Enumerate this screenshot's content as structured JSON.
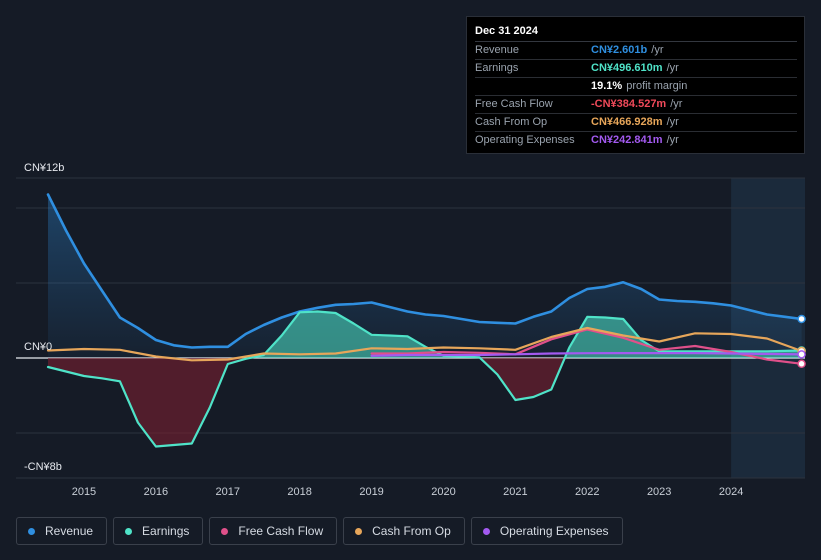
{
  "tooltip": {
    "date": "Dec 31 2024",
    "rows": [
      {
        "label": "Revenue",
        "value": "CN¥2.601b",
        "unit": "/yr",
        "color": "#2f8fe0"
      },
      {
        "label": "Earnings",
        "value": "CN¥496.610m",
        "unit": "/yr",
        "color": "#4fe3c8"
      },
      {
        "label": "",
        "value": "19.1%",
        "unit": "profit margin",
        "color": "#ffffff"
      },
      {
        "label": "Free Cash Flow",
        "value": "-CN¥384.527m",
        "unit": "/yr",
        "color": "#f04a5a"
      },
      {
        "label": "Cash From Op",
        "value": "CN¥466.928m",
        "unit": "/yr",
        "color": "#e7a65a"
      },
      {
        "label": "Operating Expenses",
        "value": "CN¥242.841m",
        "unit": "/yr",
        "color": "#a35af0"
      }
    ]
  },
  "chart_data": {
    "type": "line",
    "title": "",
    "xlabel": "",
    "ylabel": "",
    "y_axis_labels": {
      "top": "CN¥12b",
      "zero": "CN¥0",
      "bottom": "-CN¥8b"
    },
    "ylim": [
      -8,
      12
    ],
    "xlim": [
      2014.5,
      2025.0
    ],
    "x_ticks": [
      "2015",
      "2016",
      "2017",
      "2018",
      "2019",
      "2020",
      "2021",
      "2022",
      "2023",
      "2024"
    ],
    "forecast_start": 2024.0,
    "series": [
      {
        "name": "Revenue",
        "color": "#2f8fe0",
        "fill": true,
        "points": [
          [
            2014.5,
            10.9
          ],
          [
            2014.75,
            8.5
          ],
          [
            2015.0,
            6.3
          ],
          [
            2015.25,
            4.5
          ],
          [
            2015.5,
            2.7
          ],
          [
            2015.75,
            2.0
          ],
          [
            2016.0,
            1.2
          ],
          [
            2016.25,
            0.85
          ],
          [
            2016.5,
            0.7
          ],
          [
            2016.75,
            0.75
          ],
          [
            2017.0,
            0.75
          ],
          [
            2017.25,
            1.6
          ],
          [
            2017.5,
            2.2
          ],
          [
            2017.75,
            2.7
          ],
          [
            2018.0,
            3.1
          ],
          [
            2018.25,
            3.35
          ],
          [
            2018.5,
            3.55
          ],
          [
            2018.75,
            3.6
          ],
          [
            2019.0,
            3.7
          ],
          [
            2019.25,
            3.4
          ],
          [
            2019.5,
            3.1
          ],
          [
            2019.75,
            2.9
          ],
          [
            2020.0,
            2.8
          ],
          [
            2020.25,
            2.6
          ],
          [
            2020.5,
            2.4
          ],
          [
            2020.75,
            2.35
          ],
          [
            2021.0,
            2.3
          ],
          [
            2021.25,
            2.75
          ],
          [
            2021.5,
            3.1
          ],
          [
            2021.75,
            4.0
          ],
          [
            2022.0,
            4.6
          ],
          [
            2022.25,
            4.75
          ],
          [
            2022.5,
            5.05
          ],
          [
            2022.75,
            4.6
          ],
          [
            2023.0,
            3.9
          ],
          [
            2023.25,
            3.8
          ],
          [
            2023.5,
            3.75
          ],
          [
            2023.75,
            3.65
          ],
          [
            2024.0,
            3.5
          ],
          [
            2024.25,
            3.2
          ],
          [
            2024.5,
            2.9
          ],
          [
            2024.75,
            2.75
          ],
          [
            2024.98,
            2.601
          ]
        ]
      },
      {
        "name": "Earnings",
        "color": "#4fe3c8",
        "fill": true,
        "points": [
          [
            2014.5,
            -0.6
          ],
          [
            2014.75,
            -0.9
          ],
          [
            2015.0,
            -1.2
          ],
          [
            2015.25,
            -1.35
          ],
          [
            2015.5,
            -1.55
          ],
          [
            2015.75,
            -4.3
          ],
          [
            2016.0,
            -5.9
          ],
          [
            2016.25,
            -5.8
          ],
          [
            2016.5,
            -5.7
          ],
          [
            2016.75,
            -3.3
          ],
          [
            2017.0,
            -0.4
          ],
          [
            2017.25,
            -0.05
          ],
          [
            2017.5,
            0.2
          ],
          [
            2017.75,
            1.5
          ],
          [
            2018.0,
            3.05
          ],
          [
            2018.25,
            3.1
          ],
          [
            2018.5,
            3.0
          ],
          [
            2018.75,
            2.3
          ],
          [
            2019.0,
            1.55
          ],
          [
            2019.25,
            1.5
          ],
          [
            2019.5,
            1.45
          ],
          [
            2019.75,
            0.75
          ],
          [
            2020.0,
            0.15
          ],
          [
            2020.25,
            0.1
          ],
          [
            2020.5,
            0.05
          ],
          [
            2020.75,
            -1.1
          ],
          [
            2021.0,
            -2.8
          ],
          [
            2021.25,
            -2.6
          ],
          [
            2021.5,
            -2.1
          ],
          [
            2021.75,
            0.7
          ],
          [
            2022.0,
            2.75
          ],
          [
            2022.25,
            2.7
          ],
          [
            2022.5,
            2.6
          ],
          [
            2022.75,
            1.2
          ],
          [
            2023.0,
            0.45
          ],
          [
            2023.25,
            0.45
          ],
          [
            2023.5,
            0.45
          ],
          [
            2023.75,
            0.45
          ],
          [
            2024.0,
            0.45
          ],
          [
            2024.25,
            0.45
          ],
          [
            2024.5,
            0.45
          ],
          [
            2024.75,
            0.47
          ],
          [
            2024.98,
            0.497
          ]
        ]
      },
      {
        "name": "Free Cash Flow",
        "color": "#e0508a",
        "fill": false,
        "points": [
          [
            2019.0,
            0.3
          ],
          [
            2019.5,
            0.3
          ],
          [
            2020.0,
            0.4
          ],
          [
            2020.5,
            0.35
          ],
          [
            2021.0,
            0.25
          ],
          [
            2021.5,
            1.25
          ],
          [
            2022.0,
            1.9
          ],
          [
            2022.5,
            1.35
          ],
          [
            2023.0,
            0.55
          ],
          [
            2023.5,
            0.8
          ],
          [
            2024.0,
            0.4
          ],
          [
            2024.5,
            -0.1
          ],
          [
            2024.98,
            -0.385
          ]
        ]
      },
      {
        "name": "Cash From Op",
        "color": "#e7a65a",
        "fill": false,
        "points": [
          [
            2014.5,
            0.5
          ],
          [
            2015.0,
            0.6
          ],
          [
            2015.5,
            0.55
          ],
          [
            2016.0,
            0.1
          ],
          [
            2016.5,
            -0.15
          ],
          [
            2017.0,
            -0.1
          ],
          [
            2017.5,
            0.3
          ],
          [
            2018.0,
            0.25
          ],
          [
            2018.5,
            0.3
          ],
          [
            2019.0,
            0.65
          ],
          [
            2019.5,
            0.6
          ],
          [
            2020.0,
            0.7
          ],
          [
            2020.5,
            0.65
          ],
          [
            2021.0,
            0.55
          ],
          [
            2021.5,
            1.4
          ],
          [
            2022.0,
            2.0
          ],
          [
            2022.5,
            1.5
          ],
          [
            2023.0,
            1.1
          ],
          [
            2023.5,
            1.65
          ],
          [
            2024.0,
            1.6
          ],
          [
            2024.5,
            1.3
          ],
          [
            2024.98,
            0.467
          ]
        ]
      },
      {
        "name": "Operating Expenses",
        "color": "#a35af0",
        "fill": false,
        "points": [
          [
            2019.0,
            0.15
          ],
          [
            2019.5,
            0.2
          ],
          [
            2020.0,
            0.2
          ],
          [
            2020.5,
            0.2
          ],
          [
            2021.0,
            0.25
          ],
          [
            2021.5,
            0.3
          ],
          [
            2022.0,
            0.32
          ],
          [
            2022.5,
            0.33
          ],
          [
            2023.0,
            0.33
          ],
          [
            2023.5,
            0.33
          ],
          [
            2024.0,
            0.3
          ],
          [
            2024.5,
            0.27
          ],
          [
            2024.98,
            0.243
          ]
        ]
      }
    ]
  },
  "legend": [
    {
      "label": "Revenue",
      "color": "#2f8fe0"
    },
    {
      "label": "Earnings",
      "color": "#4fe3c8"
    },
    {
      "label": "Free Cash Flow",
      "color": "#e0508a"
    },
    {
      "label": "Cash From Op",
      "color": "#e7a65a"
    },
    {
      "label": "Operating Expenses",
      "color": "#a35af0"
    }
  ]
}
